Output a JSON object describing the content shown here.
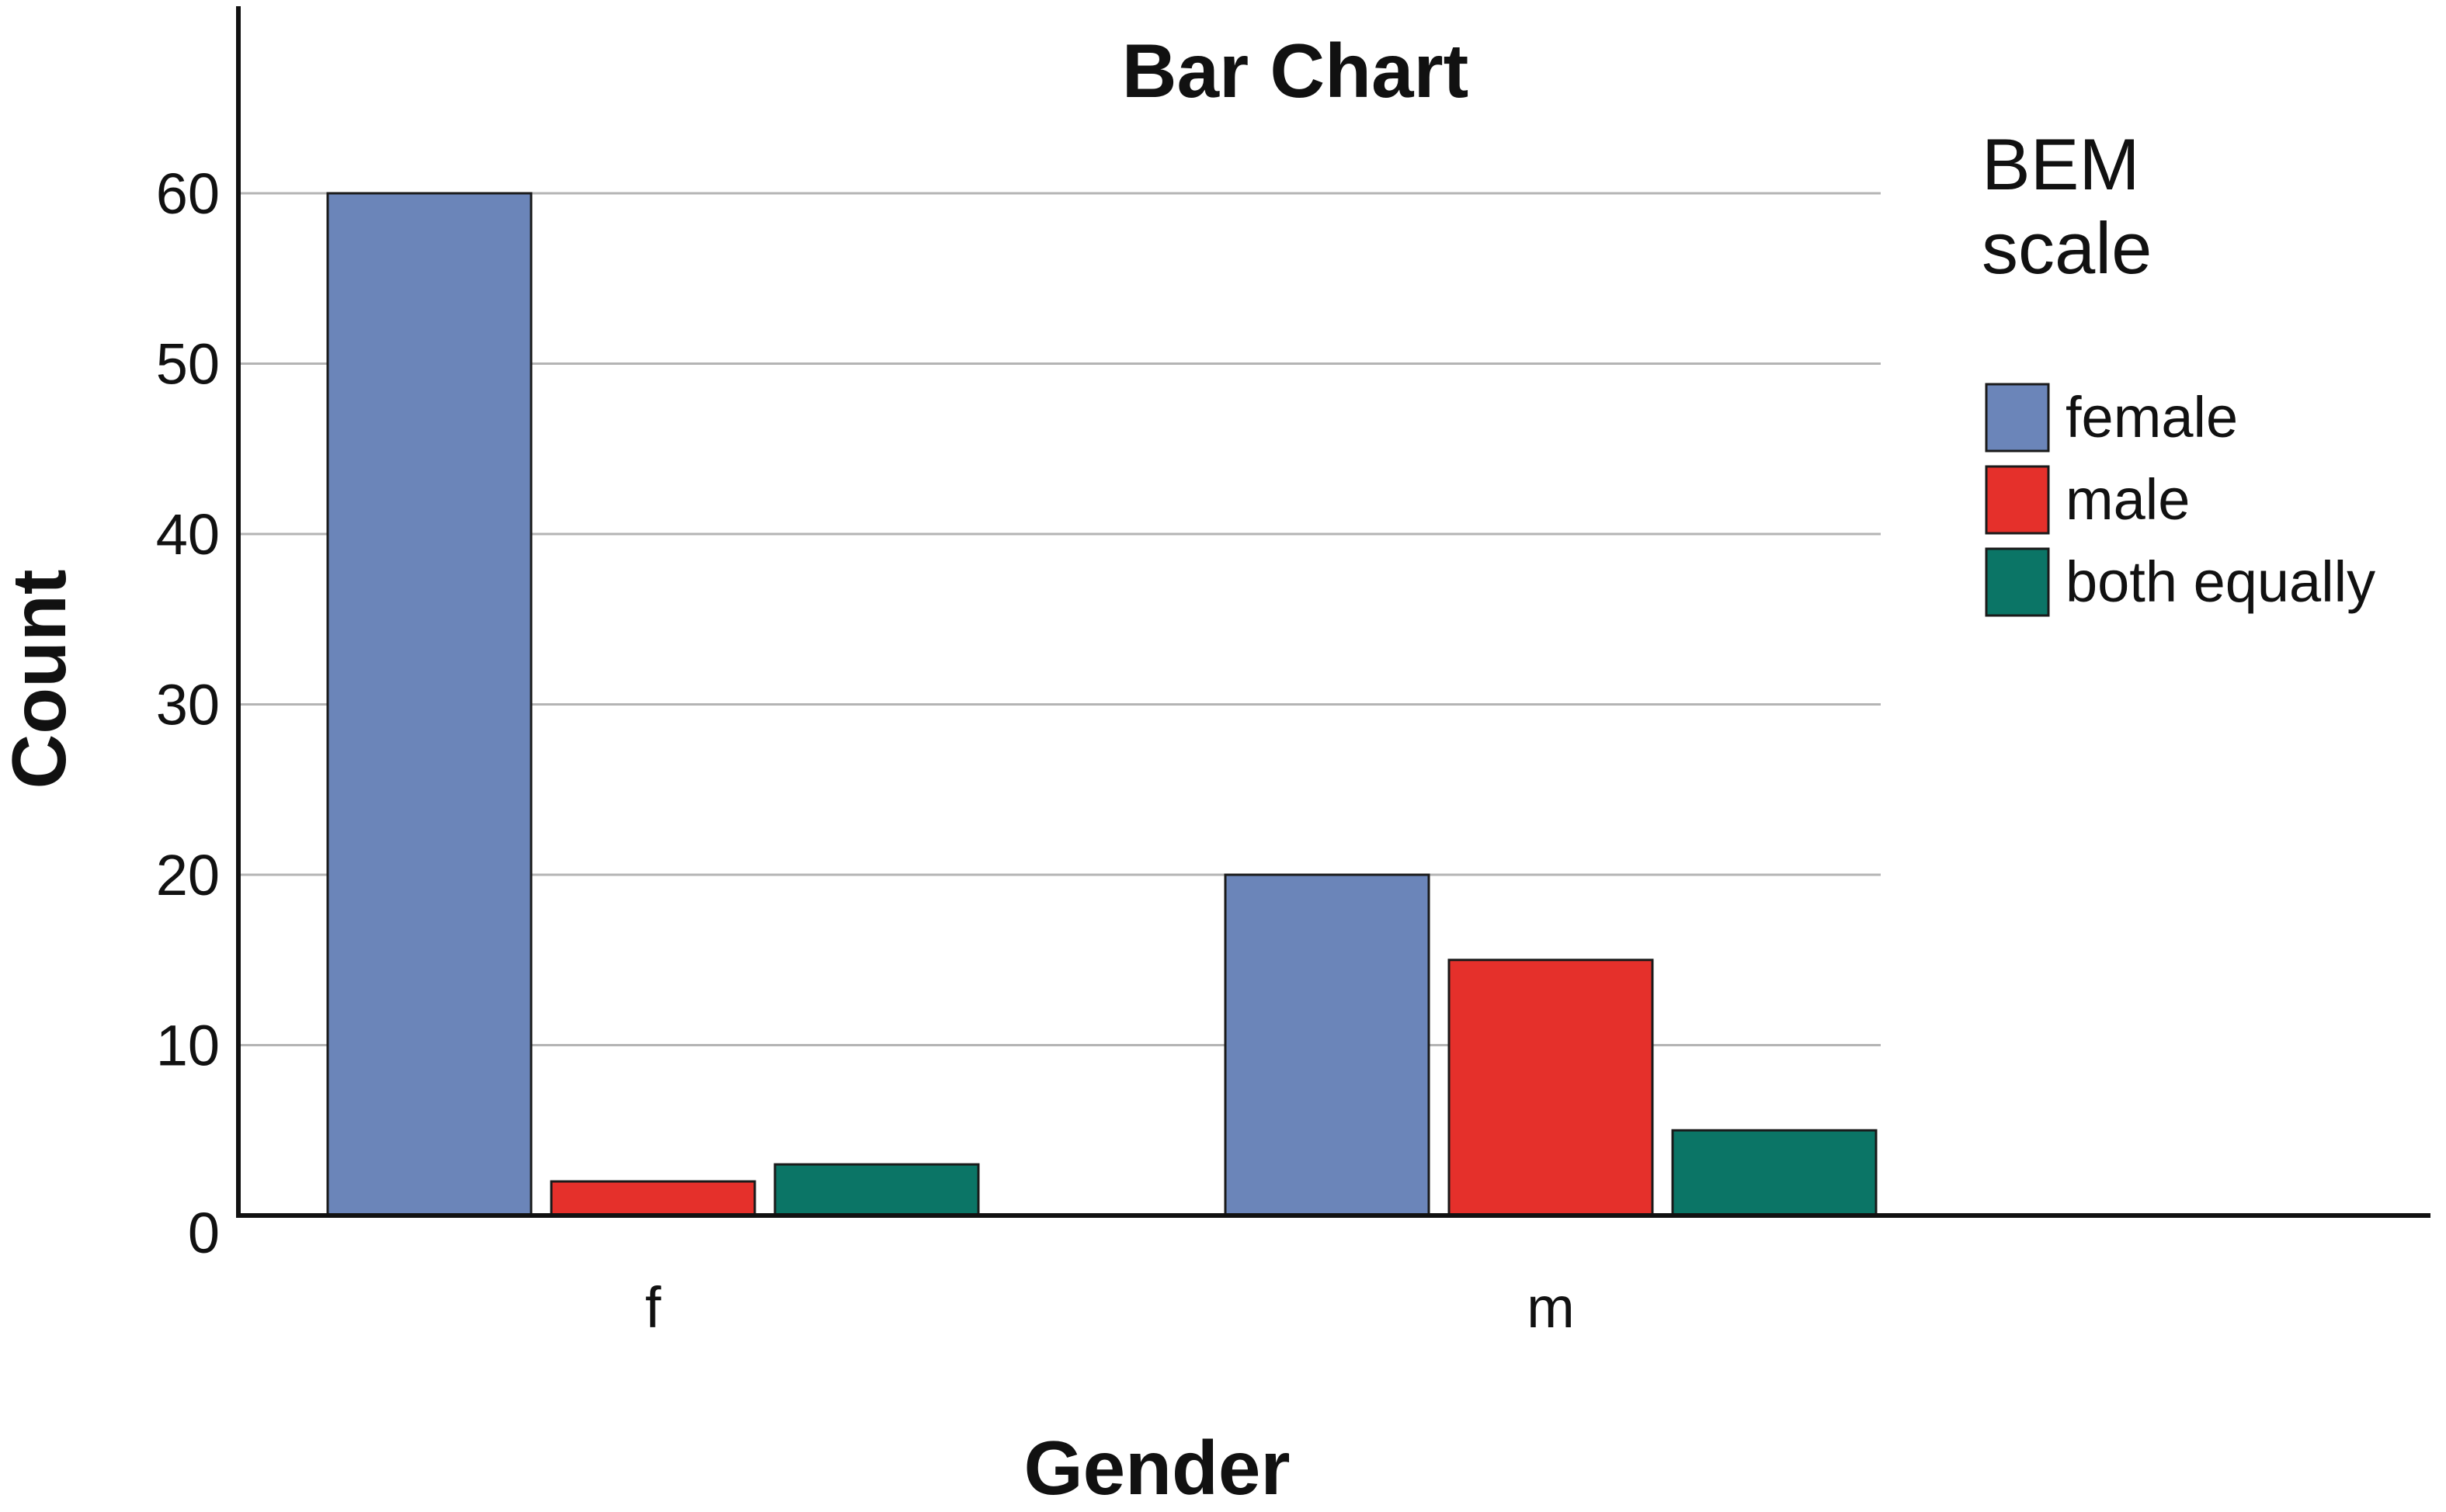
{
  "chart_data": {
    "type": "bar",
    "title": "Bar Chart",
    "xlabel": "Gender",
    "ylabel": "Count",
    "categories": [
      "f",
      "m"
    ],
    "series": [
      {
        "name": "female",
        "values": [
          60,
          20
        ],
        "color": "#6b85b9"
      },
      {
        "name": "male",
        "values": [
          2,
          15
        ],
        "color": "#e5302b"
      },
      {
        "name": "both equally",
        "values": [
          3,
          5
        ],
        "color": "#0b7566"
      }
    ],
    "ylim": [
      0,
      70
    ],
    "yticks": [
      0,
      10,
      20,
      30,
      40,
      50,
      60
    ],
    "grid": true,
    "legend": {
      "title": [
        "BEM",
        "scale"
      ],
      "placement": "right"
    }
  }
}
